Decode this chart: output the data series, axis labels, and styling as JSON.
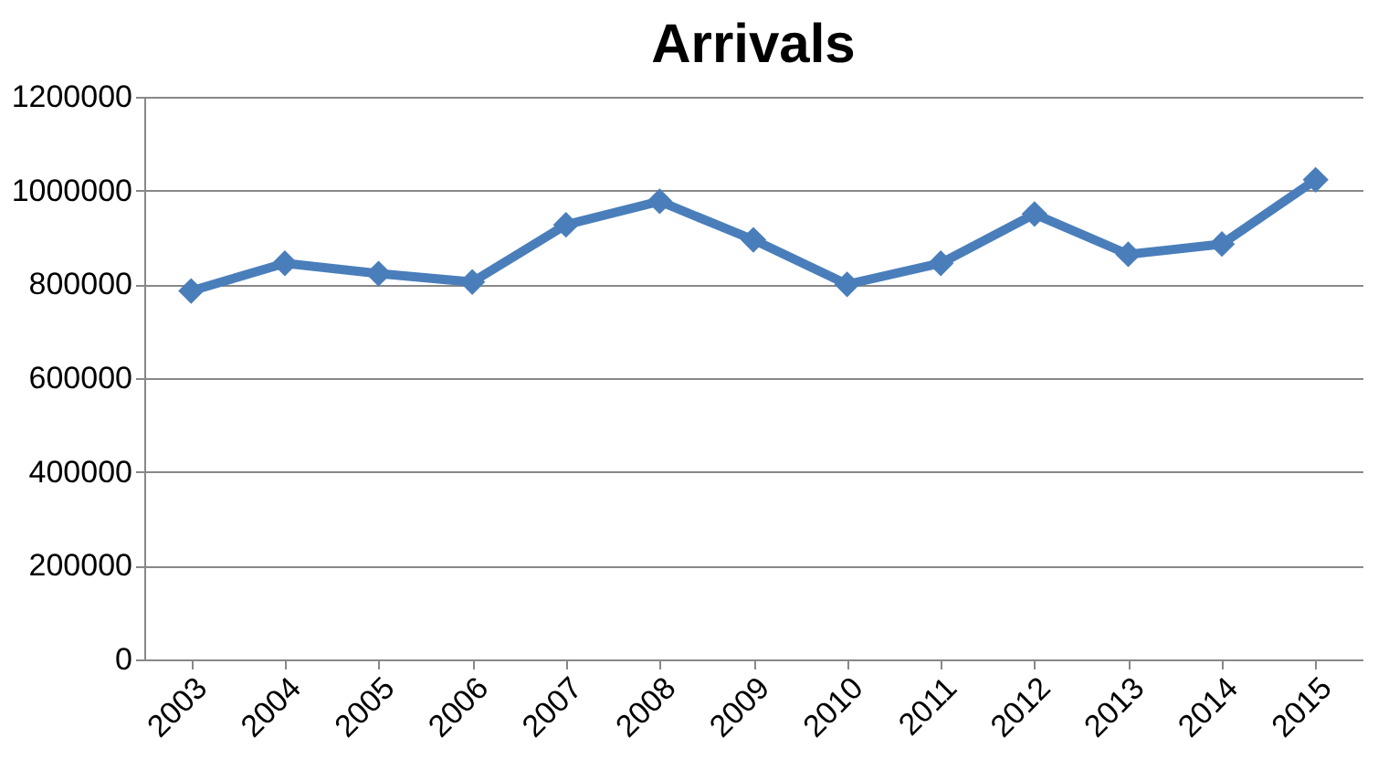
{
  "chart_data": {
    "type": "line",
    "title": "Arrivals",
    "categories": [
      "2003",
      "2004",
      "2005",
      "2006",
      "2007",
      "2008",
      "2009",
      "2010",
      "2011",
      "2012",
      "2013",
      "2014",
      "2015"
    ],
    "series": [
      {
        "color": "#4a7ebb",
        "values": [
          786000,
          845000,
          823000,
          805000,
          927000,
          977000,
          895000,
          800000,
          845000,
          950000,
          864000,
          886000,
          1023000
        ]
      }
    ],
    "ylim": [
      0,
      1200000
    ],
    "yticks": [
      0,
      200000,
      400000,
      600000,
      800000,
      1000000,
      1200000
    ],
    "grid": "y",
    "marker": "diamond",
    "line_style": "solid"
  }
}
